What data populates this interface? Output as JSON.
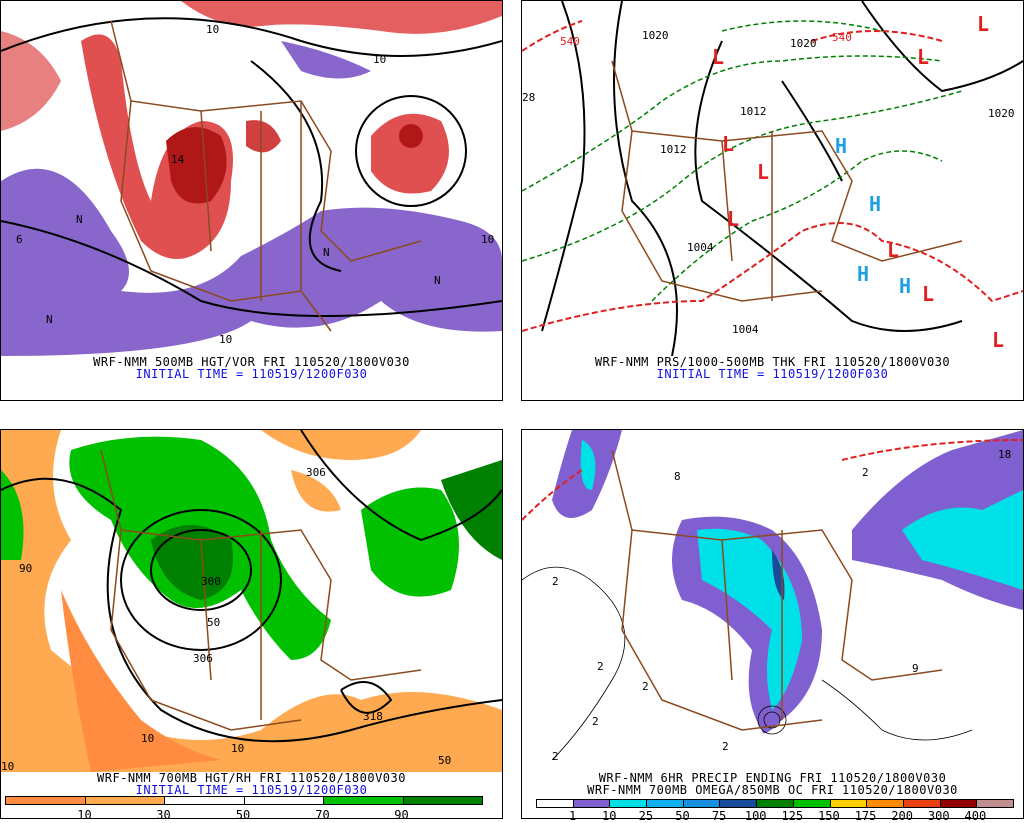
{
  "panels": {
    "vorticity": {
      "title": "WRF-NMM 500MB HGT/VOR FRI 110520/1800V030",
      "initial_time": "INITIAL TIME = 110519/1200F030",
      "contour_labels": [
        "10",
        "14",
        "10",
        "N",
        "N",
        "N",
        "10",
        "6",
        "N",
        "10"
      ]
    },
    "pressure": {
      "title": "WRF-NMM PRS/1000-500MB THK FRI 110520/1800V030",
      "initial_time": "INITIAL TIME = 110519/1200F030",
      "contour_labels": [
        "1020",
        "1020",
        "1012",
        "1012",
        "1004",
        "1004",
        "1020",
        "540",
        "540",
        "28"
      ],
      "lows": [
        "L",
        "L",
        "L",
        "L",
        "L",
        "L",
        "L",
        "L",
        "L"
      ],
      "highs": [
        "H",
        "H",
        "H",
        "H"
      ],
      "colors": {
        "low": "#e02020",
        "high": "#20a0e0",
        "thickness": "#008000"
      }
    },
    "humidity": {
      "title": "WRF-NMM 700MB HGT/RH FRI 110520/1800V030",
      "initial_time": "INITIAL TIME = 110519/1200F030",
      "contour_labels": [
        "306",
        "300",
        "306",
        "318",
        "50",
        "90",
        "10",
        "10",
        "10",
        "50"
      ],
      "colorbar": {
        "colors": [
          "#ff8c40",
          "#ffaa50",
          "#ffffff",
          "#ffffff",
          "#00c000",
          "#008000"
        ],
        "ticks": [
          "10",
          "30",
          "50",
          "70",
          "90"
        ]
      }
    },
    "precip": {
      "title": "WRF-NMM 6HR PRECIP ENDING FRI 110520/1800V030",
      "subtitle": "WRF-NMM 700MB OMEGA/850MB OC FRI 110520/1800V030",
      "contour_labels": [
        "2",
        "2",
        "2",
        "2",
        "8",
        "18",
        "2",
        "9",
        "2",
        "2"
      ],
      "colorbar": {
        "colors": [
          "#ffffff",
          "#8060d0",
          "#00e0e8",
          "#10b0f0",
          "#1890e0",
          "#1a4a9a",
          "#008000",
          "#00c000",
          "#ffd000",
          "#ff8c00",
          "#e84010",
          "#900000",
          "#c09090"
        ],
        "ticks": [
          "1",
          "10",
          "25",
          "50",
          "75",
          "100",
          "125",
          "150",
          "175",
          "200",
          "300",
          "400"
        ]
      }
    }
  }
}
